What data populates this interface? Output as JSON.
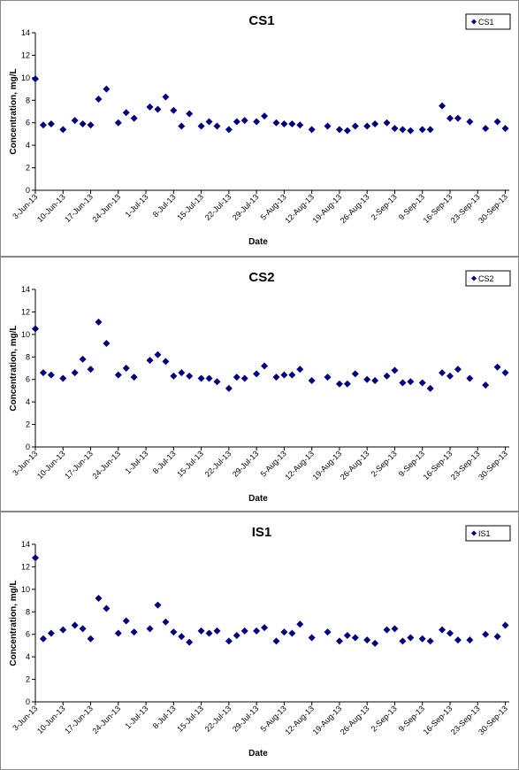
{
  "chart_data": [
    {
      "type": "scatter",
      "title": "CS1",
      "x_label": "Date",
      "y_label": "Concentration, mg/L",
      "legend": "upper right",
      "marker": "diamond",
      "x": [
        "2013-06-03",
        "2013-06-05",
        "2013-06-07",
        "2013-06-10",
        "2013-06-13",
        "2013-06-15",
        "2013-06-17",
        "2013-06-19",
        "2013-06-21",
        "2013-06-24",
        "2013-06-26",
        "2013-06-28",
        "2013-07-02",
        "2013-07-04",
        "2013-07-06",
        "2013-07-08",
        "2013-07-10",
        "2013-07-12",
        "2013-07-15",
        "2013-07-17",
        "2013-07-19",
        "2013-07-22",
        "2013-07-24",
        "2013-07-26",
        "2013-07-29",
        "2013-07-31",
        "2013-08-03",
        "2013-08-05",
        "2013-08-07",
        "2013-08-09",
        "2013-08-12",
        "2013-08-16",
        "2013-08-19",
        "2013-08-21",
        "2013-08-23",
        "2013-08-26",
        "2013-08-28",
        "2013-08-31",
        "2013-09-02",
        "2013-09-04",
        "2013-09-06",
        "2013-09-09",
        "2013-09-11",
        "2013-09-14",
        "2013-09-16",
        "2013-09-18",
        "2013-09-21",
        "2013-09-25",
        "2013-09-28",
        "2013-09-30"
      ],
      "series": [
        {
          "name": "CS1",
          "color": "#000080",
          "values": [
            9.9,
            5.8,
            5.9,
            5.4,
            6.2,
            5.9,
            5.8,
            8.1,
            9.0,
            6.0,
            6.9,
            6.4,
            7.4,
            7.2,
            8.3,
            7.1,
            5.7,
            6.8,
            5.7,
            6.1,
            5.7,
            5.4,
            6.1,
            6.2,
            6.1,
            6.6,
            6.0,
            5.9,
            5.9,
            5.8,
            5.4,
            5.7,
            5.4,
            5.3,
            5.7,
            5.7,
            5.9,
            6.0,
            5.5,
            5.4,
            5.3,
            5.4,
            5.4,
            7.5,
            6.4,
            6.4,
            6.1,
            5.5,
            6.1,
            5.5
          ]
        }
      ],
      "xlim": [
        "2013-06-03",
        "2013-10-01"
      ],
      "xticks": [
        {
          "value": "2013-06-03",
          "label": "3-Jun-13"
        },
        {
          "value": "2013-06-10",
          "label": "10-Jun-13"
        },
        {
          "value": "2013-06-17",
          "label": "17-Jun-13"
        },
        {
          "value": "2013-06-24",
          "label": "24-Jun-13"
        },
        {
          "value": "2013-07-01",
          "label": "1-Jul-13"
        },
        {
          "value": "2013-07-08",
          "label": "8-Jul-13"
        },
        {
          "value": "2013-07-15",
          "label": "15-Jul-13"
        },
        {
          "value": "2013-07-22",
          "label": "22-Jul-13"
        },
        {
          "value": "2013-07-29",
          "label": "29-Jul-13"
        },
        {
          "value": "2013-08-05",
          "label": "5-Aug-13"
        },
        {
          "value": "2013-08-12",
          "label": "12-Aug-13"
        },
        {
          "value": "2013-08-19",
          "label": "19-Aug-13"
        },
        {
          "value": "2013-08-26",
          "label": "26-Aug-13"
        },
        {
          "value": "2013-09-02",
          "label": "2-Sep-13"
        },
        {
          "value": "2013-09-09",
          "label": "9-Sep-13"
        },
        {
          "value": "2013-09-16",
          "label": "16-Sep-13"
        },
        {
          "value": "2013-09-23",
          "label": "23-Sep-13"
        },
        {
          "value": "2013-09-30",
          "label": "30-Sep-13"
        }
      ],
      "ylim": [
        0,
        14
      ],
      "yticks": [
        0,
        2,
        4,
        6,
        8,
        10,
        12,
        14
      ]
    },
    {
      "type": "scatter",
      "title": "CS2",
      "x_label": "Date",
      "y_label": "Concentration, mg/L",
      "legend": "upper right",
      "marker": "diamond",
      "x": [
        "2013-06-03",
        "2013-06-05",
        "2013-06-07",
        "2013-06-10",
        "2013-06-13",
        "2013-06-15",
        "2013-06-17",
        "2013-06-19",
        "2013-06-21",
        "2013-06-24",
        "2013-06-26",
        "2013-06-28",
        "2013-07-02",
        "2013-07-04",
        "2013-07-06",
        "2013-07-08",
        "2013-07-10",
        "2013-07-12",
        "2013-07-15",
        "2013-07-17",
        "2013-07-19",
        "2013-07-22",
        "2013-07-24",
        "2013-07-26",
        "2013-07-29",
        "2013-07-31",
        "2013-08-03",
        "2013-08-05",
        "2013-08-07",
        "2013-08-09",
        "2013-08-12",
        "2013-08-16",
        "2013-08-19",
        "2013-08-21",
        "2013-08-23",
        "2013-08-26",
        "2013-08-28",
        "2013-08-31",
        "2013-09-02",
        "2013-09-04",
        "2013-09-06",
        "2013-09-09",
        "2013-09-11",
        "2013-09-14",
        "2013-09-16",
        "2013-09-18",
        "2013-09-21",
        "2013-09-25",
        "2013-09-28",
        "2013-09-30"
      ],
      "series": [
        {
          "name": "CS2",
          "color": "#000080",
          "values": [
            10.5,
            6.6,
            6.4,
            6.1,
            6.6,
            7.8,
            6.9,
            11.1,
            9.2,
            6.4,
            7.0,
            6.2,
            7.7,
            8.2,
            7.6,
            6.3,
            6.6,
            6.3,
            6.1,
            6.1,
            5.8,
            5.2,
            6.2,
            6.1,
            6.5,
            7.2,
            6.2,
            6.4,
            6.4,
            6.9,
            5.9,
            6.2,
            5.6,
            5.6,
            6.5,
            6.0,
            5.9,
            6.3,
            6.8,
            5.7,
            5.8,
            5.7,
            5.2,
            6.6,
            6.3,
            6.9,
            6.1,
            5.5,
            7.1,
            6.6
          ]
        }
      ],
      "xlim": [
        "2013-06-03",
        "2013-10-01"
      ],
      "xticks": [
        {
          "value": "2013-06-03",
          "label": "3-Jun-13"
        },
        {
          "value": "2013-06-10",
          "label": "10-Jun-13"
        },
        {
          "value": "2013-06-17",
          "label": "17-Jun-13"
        },
        {
          "value": "2013-06-24",
          "label": "24-Jun-13"
        },
        {
          "value": "2013-07-01",
          "label": "1-Jul-13"
        },
        {
          "value": "2013-07-08",
          "label": "8-Jul-13"
        },
        {
          "value": "2013-07-15",
          "label": "15-Jul-13"
        },
        {
          "value": "2013-07-22",
          "label": "22-Jul-13"
        },
        {
          "value": "2013-07-29",
          "label": "29-Jul-13"
        },
        {
          "value": "2013-08-05",
          "label": "5-Aug-13"
        },
        {
          "value": "2013-08-12",
          "label": "12-Aug-13"
        },
        {
          "value": "2013-08-19",
          "label": "19-Aug-13"
        },
        {
          "value": "2013-08-26",
          "label": "26-Aug-13"
        },
        {
          "value": "2013-09-02",
          "label": "2-Sep-13"
        },
        {
          "value": "2013-09-09",
          "label": "9-Sep-13"
        },
        {
          "value": "2013-09-16",
          "label": "16-Sep-13"
        },
        {
          "value": "2013-09-23",
          "label": "23-Sep-13"
        },
        {
          "value": "2013-09-30",
          "label": "30-Sep-13"
        }
      ],
      "ylim": [
        0,
        14
      ],
      "yticks": [
        0,
        2,
        4,
        6,
        8,
        10,
        12,
        14
      ]
    },
    {
      "type": "scatter",
      "title": "IS1",
      "x_label": "Date",
      "y_label": "Concentration, mg/L",
      "legend": "upper right",
      "marker": "diamond",
      "x": [
        "2013-06-03",
        "2013-06-05",
        "2013-06-07",
        "2013-06-10",
        "2013-06-13",
        "2013-06-15",
        "2013-06-17",
        "2013-06-19",
        "2013-06-21",
        "2013-06-24",
        "2013-06-26",
        "2013-06-28",
        "2013-07-02",
        "2013-07-04",
        "2013-07-06",
        "2013-07-08",
        "2013-07-10",
        "2013-07-12",
        "2013-07-15",
        "2013-07-17",
        "2013-07-19",
        "2013-07-22",
        "2013-07-24",
        "2013-07-26",
        "2013-07-29",
        "2013-07-31",
        "2013-08-03",
        "2013-08-05",
        "2013-08-07",
        "2013-08-09",
        "2013-08-12",
        "2013-08-16",
        "2013-08-19",
        "2013-08-21",
        "2013-08-23",
        "2013-08-26",
        "2013-08-28",
        "2013-08-31",
        "2013-09-02",
        "2013-09-04",
        "2013-09-06",
        "2013-09-09",
        "2013-09-11",
        "2013-09-14",
        "2013-09-16",
        "2013-09-18",
        "2013-09-21",
        "2013-09-25",
        "2013-09-28",
        "2013-09-30"
      ],
      "series": [
        {
          "name": "IS1",
          "color": "#000080",
          "values": [
            12.8,
            5.6,
            6.1,
            6.4,
            6.8,
            6.5,
            5.6,
            9.2,
            8.3,
            6.1,
            7.2,
            6.2,
            6.5,
            8.6,
            7.1,
            6.2,
            5.8,
            5.3,
            6.3,
            6.1,
            6.3,
            5.4,
            5.9,
            6.3,
            6.3,
            6.6,
            5.4,
            6.2,
            6.1,
            6.9,
            5.7,
            6.2,
            5.4,
            5.9,
            5.7,
            5.5,
            5.2,
            6.4,
            6.5,
            5.4,
            5.7,
            5.6,
            5.4,
            6.4,
            6.1,
            5.5,
            5.5,
            6.0,
            5.8,
            6.8
          ]
        }
      ],
      "xlim": [
        "2013-06-03",
        "2013-10-01"
      ],
      "xticks": [
        {
          "value": "2013-06-03",
          "label": "3-Jun-13"
        },
        {
          "value": "2013-06-10",
          "label": "10-Jun-13"
        },
        {
          "value": "2013-06-17",
          "label": "17-Jun-13"
        },
        {
          "value": "2013-06-24",
          "label": "24-Jun-13"
        },
        {
          "value": "2013-07-01",
          "label": "1-Jul-13"
        },
        {
          "value": "2013-07-08",
          "label": "8-Jul-13"
        },
        {
          "value": "2013-07-15",
          "label": "15-Jul-13"
        },
        {
          "value": "2013-07-22",
          "label": "22-Jul-13"
        },
        {
          "value": "2013-07-29",
          "label": "29-Jul-13"
        },
        {
          "value": "2013-08-05",
          "label": "5-Aug-13"
        },
        {
          "value": "2013-08-12",
          "label": "12-Aug-13"
        },
        {
          "value": "2013-08-19",
          "label": "19-Aug-13"
        },
        {
          "value": "2013-08-26",
          "label": "26-Aug-13"
        },
        {
          "value": "2013-09-02",
          "label": "2-Sep-13"
        },
        {
          "value": "2013-09-09",
          "label": "9-Sep-13"
        },
        {
          "value": "2013-09-16",
          "label": "16-Sep-13"
        },
        {
          "value": "2013-09-23",
          "label": "23-Sep-13"
        },
        {
          "value": "2013-09-30",
          "label": "30-Sep-13"
        }
      ],
      "ylim": [
        0,
        14
      ],
      "yticks": [
        0,
        2,
        4,
        6,
        8,
        10,
        12,
        14
      ]
    }
  ]
}
